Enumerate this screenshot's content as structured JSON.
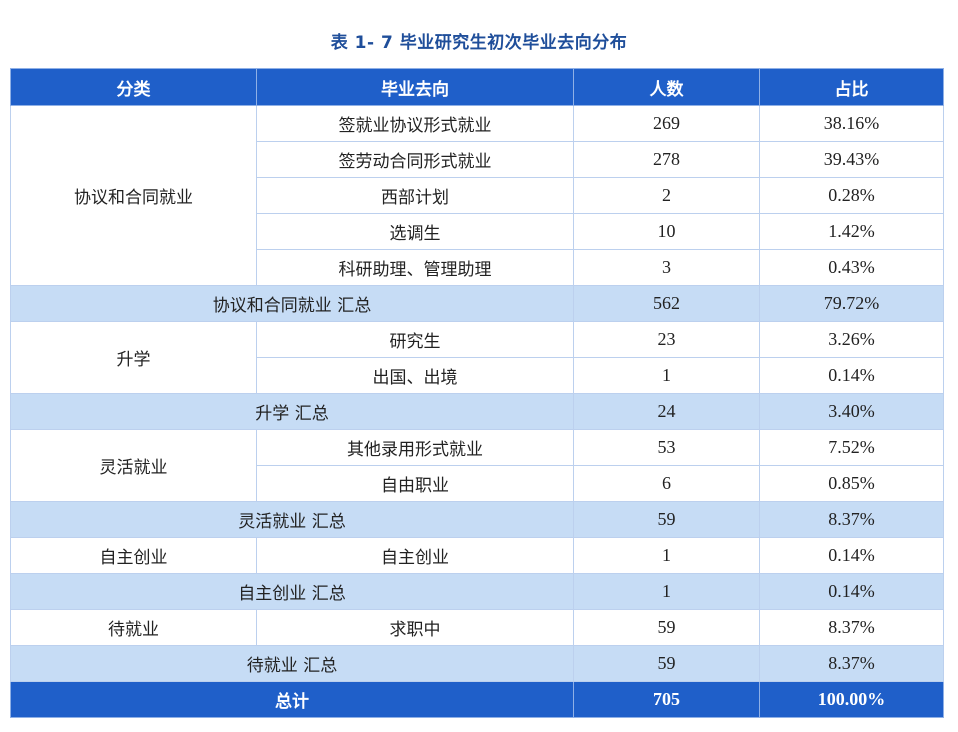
{
  "title": "表 1- 7 毕业研究生初次毕业去向分布",
  "headers": [
    "分类",
    "毕业去向",
    "人数",
    "占比"
  ],
  "groups": [
    {
      "category": "协议和合同就业",
      "rows": [
        {
          "destination": "签就业协议形式就业",
          "count": "269",
          "percent": "38.16%"
        },
        {
          "destination": "签劳动合同形式就业",
          "count": "278",
          "percent": "39.43%"
        },
        {
          "destination": "西部计划",
          "count": "2",
          "percent": "0.28%"
        },
        {
          "destination": "选调生",
          "count": "10",
          "percent": "1.42%"
        },
        {
          "destination": "科研助理、管理助理",
          "count": "3",
          "percent": "0.43%"
        }
      ],
      "subtotal": {
        "label": "协议和合同就业 汇总",
        "count": "562",
        "percent": "79.72%"
      }
    },
    {
      "category": "升学",
      "rows": [
        {
          "destination": "研究生",
          "count": "23",
          "percent": "3.26%"
        },
        {
          "destination": "出国、出境",
          "count": "1",
          "percent": "0.14%"
        }
      ],
      "subtotal": {
        "label": "升学 汇总",
        "count": "24",
        "percent": "3.40%"
      }
    },
    {
      "category": "灵活就业",
      "rows": [
        {
          "destination": "其他录用形式就业",
          "count": "53",
          "percent": "7.52%"
        },
        {
          "destination": "自由职业",
          "count": "6",
          "percent": "0.85%"
        }
      ],
      "subtotal": {
        "label": "灵活就业 汇总",
        "count": "59",
        "percent": "8.37%"
      }
    },
    {
      "category": "自主创业",
      "rows": [
        {
          "destination": "自主创业",
          "count": "1",
          "percent": "0.14%"
        }
      ],
      "subtotal": {
        "label": "自主创业 汇总",
        "count": "1",
        "percent": "0.14%"
      }
    },
    {
      "category": "待就业",
      "rows": [
        {
          "destination": "求职中",
          "count": "59",
          "percent": "8.37%"
        }
      ],
      "subtotal": {
        "label": "待就业 汇总",
        "count": "59",
        "percent": "8.37%"
      }
    }
  ],
  "total": {
    "label": "总计",
    "count": "705",
    "percent": "100.00%"
  },
  "colors": {
    "header_bg": "#1f5fc9",
    "title": "#1f4e9a",
    "subtotal_bg": "#c6dcf5"
  }
}
